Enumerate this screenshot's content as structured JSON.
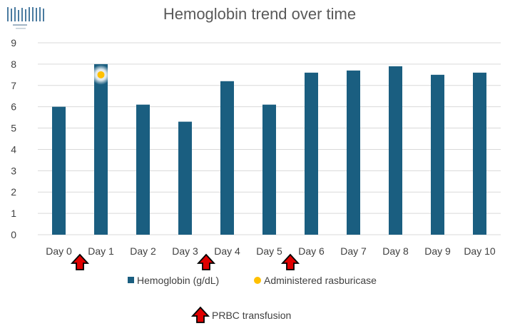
{
  "chart_data": {
    "type": "bar",
    "title": "Hemoglobin trend over time",
    "xlabel": "",
    "ylabel": "",
    "ylim": [
      0,
      9
    ],
    "yticks": [
      0,
      1,
      2,
      3,
      4,
      5,
      6,
      7,
      8,
      9
    ],
    "categories": [
      "Day 0",
      "Day 1",
      "Day 2",
      "Day 3",
      "Day 4",
      "Day 5",
      "Day 6",
      "Day 7",
      "Day 8",
      "Day 9",
      "Day 10"
    ],
    "series": [
      {
        "name": "Hemoglobin (g/dL)",
        "color": "#1A5E80",
        "values": [
          6.0,
          8.0,
          6.1,
          5.3,
          7.2,
          6.1,
          7.6,
          7.7,
          7.9,
          7.5,
          7.6
        ]
      }
    ],
    "annotations": {
      "rasburicase": {
        "label": "Administered rasburicase",
        "color": "#FFC000",
        "category": "Day 1",
        "value": 7.5
      },
      "prbc_transfusion": {
        "label": "PRBC transfusion",
        "color": "#E00000",
        "after_categories": [
          "Day 0",
          "Day 3",
          "Day 5"
        ]
      }
    },
    "grid": true,
    "legend": "bottom"
  }
}
